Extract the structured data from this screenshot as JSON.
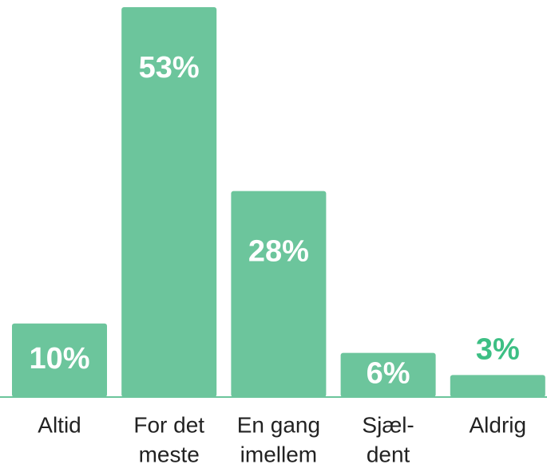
{
  "chart_data": {
    "type": "bar",
    "categories": [
      [
        "Altid"
      ],
      [
        "For det",
        "meste"
      ],
      [
        "En gang",
        "imellem"
      ],
      [
        "Sjæl-",
        "dent"
      ],
      [
        "Aldrig"
      ]
    ],
    "values": [
      10,
      53,
      28,
      6,
      3
    ],
    "value_labels": [
      "10%",
      "53%",
      "28%",
      "6%",
      "3%"
    ],
    "color": "#6cc59c"
  }
}
